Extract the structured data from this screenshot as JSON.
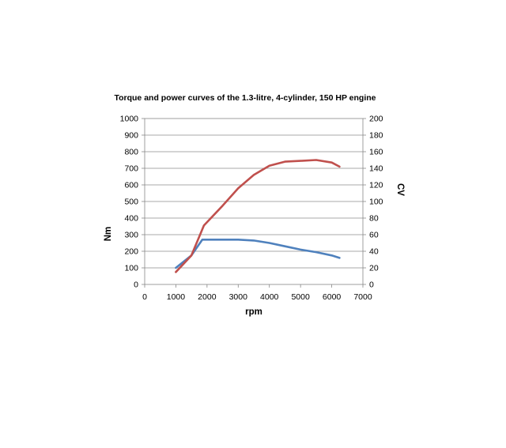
{
  "chart_data": {
    "type": "line",
    "title": "Torque and power curves of the 1.3-litre, 4-cylinder, 150 HP engine",
    "xlabel": "rpm",
    "ylabel": "Nm",
    "y2label": "CV",
    "xlim": [
      0,
      7000
    ],
    "ylim": [
      0,
      1000
    ],
    "y2lim": [
      0,
      200
    ],
    "x_ticks": [
      "0",
      "1000",
      "2000",
      "3000",
      "4000",
      "5000",
      "6000",
      "7000"
    ],
    "y_ticks": [
      "0",
      "100",
      "200",
      "300",
      "400",
      "500",
      "600",
      "700",
      "800",
      "900",
      "1000"
    ],
    "y2_ticks": [
      "0",
      "20",
      "40",
      "60",
      "80",
      "100",
      "120",
      "140",
      "160",
      "180",
      "200"
    ],
    "grid": true,
    "legend": "none",
    "series": [
      {
        "axis": "left",
        "color": "#4f81bd",
        "points": [
          [
            1000,
            100
          ],
          [
            1500,
            175
          ],
          [
            1850,
            270
          ],
          [
            2500,
            270
          ],
          [
            3000,
            270
          ],
          [
            3500,
            265
          ],
          [
            4000,
            250
          ],
          [
            4500,
            230
          ],
          [
            5000,
            210
          ],
          [
            5500,
            195
          ],
          [
            6000,
            175
          ],
          [
            6250,
            160
          ]
        ]
      },
      {
        "axis": "right",
        "color": "#c0504d",
        "points": [
          [
            1000,
            15
          ],
          [
            1500,
            35
          ],
          [
            1900,
            71
          ],
          [
            2500,
            95
          ],
          [
            3000,
            116
          ],
          [
            3500,
            132
          ],
          [
            4000,
            143
          ],
          [
            4500,
            148
          ],
          [
            5000,
            149
          ],
          [
            5500,
            150
          ],
          [
            6000,
            147
          ],
          [
            6250,
            142
          ]
        ]
      }
    ]
  }
}
